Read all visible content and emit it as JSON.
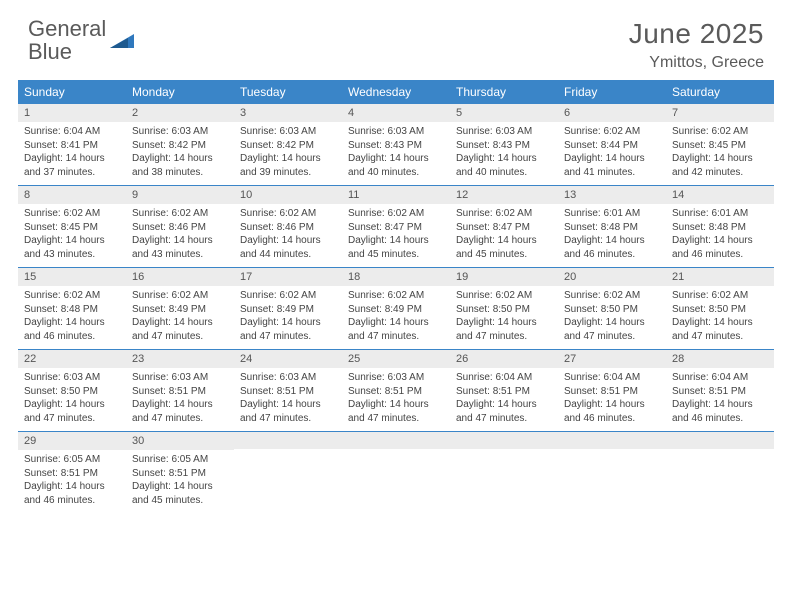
{
  "logo": {
    "text1": "General",
    "text2": "Blue"
  },
  "title": "June 2025",
  "location": "Ymittos, Greece",
  "colors": {
    "header_bg": "#3a85c8",
    "daynum_bg": "#ececec",
    "week_border": "#3a85c8",
    "logo_gray": "#5a5a5a",
    "logo_blue": "#2f78bd"
  },
  "weekdays": [
    "Sunday",
    "Monday",
    "Tuesday",
    "Wednesday",
    "Thursday",
    "Friday",
    "Saturday"
  ],
  "weeks": [
    [
      {
        "n": "1",
        "sr": "6:04 AM",
        "ss": "8:41 PM",
        "dl": "14 hours and 37 minutes."
      },
      {
        "n": "2",
        "sr": "6:03 AM",
        "ss": "8:42 PM",
        "dl": "14 hours and 38 minutes."
      },
      {
        "n": "3",
        "sr": "6:03 AM",
        "ss": "8:42 PM",
        "dl": "14 hours and 39 minutes."
      },
      {
        "n": "4",
        "sr": "6:03 AM",
        "ss": "8:43 PM",
        "dl": "14 hours and 40 minutes."
      },
      {
        "n": "5",
        "sr": "6:03 AM",
        "ss": "8:43 PM",
        "dl": "14 hours and 40 minutes."
      },
      {
        "n": "6",
        "sr": "6:02 AM",
        "ss": "8:44 PM",
        "dl": "14 hours and 41 minutes."
      },
      {
        "n": "7",
        "sr": "6:02 AM",
        "ss": "8:45 PM",
        "dl": "14 hours and 42 minutes."
      }
    ],
    [
      {
        "n": "8",
        "sr": "6:02 AM",
        "ss": "8:45 PM",
        "dl": "14 hours and 43 minutes."
      },
      {
        "n": "9",
        "sr": "6:02 AM",
        "ss": "8:46 PM",
        "dl": "14 hours and 43 minutes."
      },
      {
        "n": "10",
        "sr": "6:02 AM",
        "ss": "8:46 PM",
        "dl": "14 hours and 44 minutes."
      },
      {
        "n": "11",
        "sr": "6:02 AM",
        "ss": "8:47 PM",
        "dl": "14 hours and 45 minutes."
      },
      {
        "n": "12",
        "sr": "6:02 AM",
        "ss": "8:47 PM",
        "dl": "14 hours and 45 minutes."
      },
      {
        "n": "13",
        "sr": "6:01 AM",
        "ss": "8:48 PM",
        "dl": "14 hours and 46 minutes."
      },
      {
        "n": "14",
        "sr": "6:01 AM",
        "ss": "8:48 PM",
        "dl": "14 hours and 46 minutes."
      }
    ],
    [
      {
        "n": "15",
        "sr": "6:02 AM",
        "ss": "8:48 PM",
        "dl": "14 hours and 46 minutes."
      },
      {
        "n": "16",
        "sr": "6:02 AM",
        "ss": "8:49 PM",
        "dl": "14 hours and 47 minutes."
      },
      {
        "n": "17",
        "sr": "6:02 AM",
        "ss": "8:49 PM",
        "dl": "14 hours and 47 minutes."
      },
      {
        "n": "18",
        "sr": "6:02 AM",
        "ss": "8:49 PM",
        "dl": "14 hours and 47 minutes."
      },
      {
        "n": "19",
        "sr": "6:02 AM",
        "ss": "8:50 PM",
        "dl": "14 hours and 47 minutes."
      },
      {
        "n": "20",
        "sr": "6:02 AM",
        "ss": "8:50 PM",
        "dl": "14 hours and 47 minutes."
      },
      {
        "n": "21",
        "sr": "6:02 AM",
        "ss": "8:50 PM",
        "dl": "14 hours and 47 minutes."
      }
    ],
    [
      {
        "n": "22",
        "sr": "6:03 AM",
        "ss": "8:50 PM",
        "dl": "14 hours and 47 minutes."
      },
      {
        "n": "23",
        "sr": "6:03 AM",
        "ss": "8:51 PM",
        "dl": "14 hours and 47 minutes."
      },
      {
        "n": "24",
        "sr": "6:03 AM",
        "ss": "8:51 PM",
        "dl": "14 hours and 47 minutes."
      },
      {
        "n": "25",
        "sr": "6:03 AM",
        "ss": "8:51 PM",
        "dl": "14 hours and 47 minutes."
      },
      {
        "n": "26",
        "sr": "6:04 AM",
        "ss": "8:51 PM",
        "dl": "14 hours and 47 minutes."
      },
      {
        "n": "27",
        "sr": "6:04 AM",
        "ss": "8:51 PM",
        "dl": "14 hours and 46 minutes."
      },
      {
        "n": "28",
        "sr": "6:04 AM",
        "ss": "8:51 PM",
        "dl": "14 hours and 46 minutes."
      }
    ],
    [
      {
        "n": "29",
        "sr": "6:05 AM",
        "ss": "8:51 PM",
        "dl": "14 hours and 46 minutes."
      },
      {
        "n": "30",
        "sr": "6:05 AM",
        "ss": "8:51 PM",
        "dl": "14 hours and 45 minutes."
      },
      null,
      null,
      null,
      null,
      null
    ]
  ],
  "labels": {
    "sunrise": "Sunrise:",
    "sunset": "Sunset:",
    "daylight": "Daylight:"
  }
}
